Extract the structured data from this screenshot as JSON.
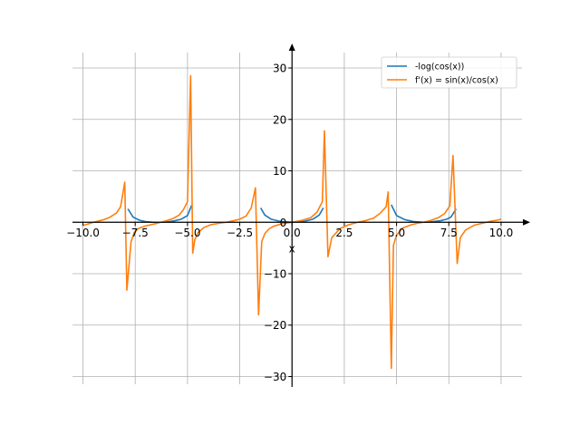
{
  "chart_data": {
    "type": "line",
    "title": "",
    "xlabel": "x",
    "ylabel": "",
    "xlim": [
      -10.5,
      11.0
    ],
    "ylim": [
      -31.5,
      33.0
    ],
    "grid": true,
    "legend_position": "top-right",
    "x_ticks": [
      -10.0,
      -7.5,
      -5.0,
      -2.5,
      0.0,
      2.5,
      5.0,
      7.5,
      10.0
    ],
    "x_tick_labels": [
      "−10.0",
      "−7.5",
      "−5.0",
      "−2.5",
      "0.0",
      "2.5",
      "5.0",
      "7.5",
      "10.0"
    ],
    "y_ticks": [
      -30,
      -20,
      -10,
      0,
      10,
      20,
      30
    ],
    "y_tick_labels": [
      "−30",
      "−20",
      "−10",
      "0",
      "10",
      "20",
      "30"
    ],
    "series": [
      {
        "name": "-log(cos(x))",
        "color": "#1f77b4",
        "segments": [
          {
            "x": [
              -7.85,
              -7.6,
              -7.3,
              -7.0,
              -6.7,
              -6.28,
              -5.9,
              -5.6,
              -5.3,
              -5.0,
              -4.8
            ],
            "y": [
              2.6,
              1.0,
              0.4,
              0.12,
              0.01,
              0.0,
              0.1,
              0.3,
              0.6,
              1.3,
              3.3
            ]
          },
          {
            "x": [
              -1.5,
              -1.3,
              -1.0,
              -0.6,
              0.0,
              0.6,
              1.0,
              1.3,
              1.5
            ],
            "y": [
              2.8,
              1.4,
              0.6,
              0.2,
              0.0,
              0.2,
              0.6,
              1.4,
              2.8
            ]
          },
          {
            "x": [
              4.75,
              5.0,
              5.4,
              5.8,
              6.28,
              6.7,
              7.1,
              7.4,
              7.6,
              7.85
            ],
            "y": [
              3.4,
              1.3,
              0.5,
              0.15,
              0.0,
              0.1,
              0.3,
              0.6,
              1.0,
              2.6
            ]
          }
        ]
      },
      {
        "name": "f'(x) = sin(x)/cos(x)",
        "color": "#ff7f0e",
        "x": [
          -10.0,
          -9.8,
          -9.5,
          -9.2,
          -9.0,
          -8.7,
          -8.4,
          -8.2,
          -8.0,
          -7.9,
          -7.7,
          -7.55,
          -7.35,
          -7.0,
          -6.5,
          -6.28,
          -6.0,
          -5.7,
          -5.4,
          -5.2,
          -5.0,
          -4.85,
          -4.75,
          -4.65,
          -4.5,
          -4.2,
          -3.9,
          -3.5,
          -3.14,
          -2.8,
          -2.5,
          -2.2,
          -1.95,
          -1.75,
          -1.6,
          -1.45,
          -1.3,
          -1.1,
          -0.9,
          -0.5,
          0.0,
          0.5,
          0.9,
          1.2,
          1.45,
          1.55,
          1.72,
          1.9,
          2.3,
          2.7,
          3.14,
          3.5,
          3.9,
          4.2,
          4.5,
          4.6,
          4.75,
          4.85,
          5.0,
          5.3,
          5.7,
          6.0,
          6.28,
          6.6,
          7.0,
          7.3,
          7.55,
          7.7,
          7.9,
          8.05,
          8.3,
          8.7,
          9.1,
          9.5,
          9.8,
          10.0
        ],
        "y": [
          -0.6,
          -0.4,
          0.0,
          0.3,
          0.5,
          1.0,
          1.8,
          3.0,
          7.8,
          -13.2,
          -3.8,
          -2.0,
          -1.2,
          -0.7,
          -0.25,
          0.0,
          0.3,
          0.7,
          1.4,
          2.4,
          4.0,
          28.5,
          -6.0,
          -3.4,
          -2.0,
          -1.0,
          -0.5,
          -0.2,
          0.0,
          0.3,
          0.6,
          1.2,
          2.8,
          6.7,
          -18.0,
          -3.8,
          -2.2,
          -1.3,
          -0.8,
          -0.3,
          0.0,
          0.4,
          0.9,
          2.0,
          4.0,
          17.8,
          -6.7,
          -3.0,
          -1.2,
          -0.5,
          0.0,
          0.3,
          0.8,
          1.7,
          3.0,
          5.9,
          -28.4,
          -4.5,
          -2.5,
          -1.1,
          -0.5,
          -0.2,
          0.0,
          0.3,
          0.9,
          1.7,
          3.2,
          13.0,
          -8.0,
          -3.0,
          -1.5,
          -0.6,
          -0.2,
          0.2,
          0.4,
          0.6
        ]
      }
    ]
  }
}
